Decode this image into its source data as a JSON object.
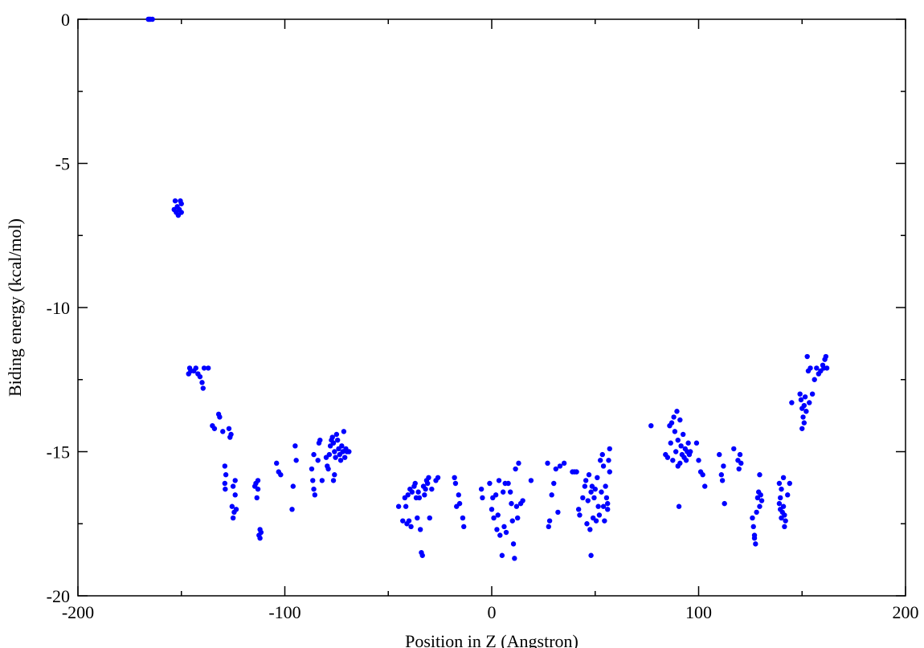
{
  "chart_data": {
    "type": "scatter",
    "title": "",
    "xlabel": "Position in Z (Angstron)",
    "ylabel": "Biding energy (kcal/mol)",
    "xlim": [
      -200,
      200
    ],
    "ylim": [
      -20,
      0
    ],
    "x_ticks": [
      -200,
      -100,
      0,
      100,
      200
    ],
    "y_ticks": [
      0,
      -5,
      -10,
      -15,
      -20
    ],
    "x_tick_labels": [
      "-200",
      "-100",
      "0",
      "100",
      "200"
    ],
    "y_tick_labels": [
      "0",
      "-5",
      "-10",
      "-15",
      "-20"
    ],
    "grid": false,
    "legend": false,
    "marker_color": "#0000ff",
    "points": [
      [
        -165,
        0.0
      ],
      [
        -164,
        0.0
      ],
      [
        -166,
        0.0
      ],
      [
        -165.5,
        0.0
      ],
      [
        -153,
        -6.3
      ],
      [
        -152,
        -6.5
      ],
      [
        -151,
        -6.6
      ],
      [
        -150,
        -6.4
      ],
      [
        -152.5,
        -6.7
      ],
      [
        -151.5,
        -6.8
      ],
      [
        -150.5,
        -6.3
      ],
      [
        -153.5,
        -6.6
      ],
      [
        -150,
        -6.7
      ],
      [
        -146,
        -12.1
      ],
      [
        -145.5,
        -12.2
      ],
      [
        -146.5,
        -12.3
      ],
      [
        -144,
        -12.2
      ],
      [
        -143,
        -12.1
      ],
      [
        -142,
        -12.3
      ],
      [
        -141,
        -12.4
      ],
      [
        -140,
        -12.6
      ],
      [
        -139.5,
        -12.8
      ],
      [
        -139,
        -12.1
      ],
      [
        -137,
        -12.1
      ],
      [
        -135,
        -14.1
      ],
      [
        -134,
        -14.2
      ],
      [
        -132,
        -13.7
      ],
      [
        -131.5,
        -13.8
      ],
      [
        -130,
        -14.3
      ],
      [
        -129,
        -15.5
      ],
      [
        -128.5,
        -15.8
      ],
      [
        -129,
        -16.1
      ],
      [
        -128.8,
        -16.3
      ],
      [
        -127,
        -14.2
      ],
      [
        -126,
        -14.4
      ],
      [
        -126.5,
        -14.5
      ],
      [
        -125,
        -16.2
      ],
      [
        -124,
        -16.5
      ],
      [
        -125.5,
        -16.9
      ],
      [
        -124.5,
        -17.1
      ],
      [
        -125,
        -17.3
      ],
      [
        -123.5,
        -17.0
      ],
      [
        -124,
        -16.0
      ],
      [
        -114,
        -16.1
      ],
      [
        -113,
        -16.3
      ],
      [
        -113.5,
        -16.6
      ],
      [
        -114.5,
        -16.2
      ],
      [
        -113,
        -16.0
      ],
      [
        -112,
        -17.7
      ],
      [
        -112.5,
        -17.9
      ],
      [
        -111.5,
        -17.8
      ],
      [
        -112,
        -18.0
      ],
      [
        -104,
        -15.4
      ],
      [
        -103,
        -15.7
      ],
      [
        -102,
        -15.8
      ],
      [
        -96,
        -16.2
      ],
      [
        -96.5,
        -17.0
      ],
      [
        -95,
        -14.8
      ],
      [
        -94.5,
        -15.3
      ],
      [
        -87,
        -15.6
      ],
      [
        -86.5,
        -16.0
      ],
      [
        -86,
        -16.3
      ],
      [
        -85.5,
        -16.5
      ],
      [
        -86,
        -15.1
      ],
      [
        -84,
        -15.3
      ],
      [
        -83.5,
        -14.7
      ],
      [
        -83,
        -14.6
      ],
      [
        -82,
        -16.0
      ],
      [
        -80,
        -15.2
      ],
      [
        -79.5,
        -15.5
      ],
      [
        -79,
        -15.6
      ],
      [
        -78.5,
        -15.1
      ],
      [
        -78,
        -14.8
      ],
      [
        -77.5,
        -14.6
      ],
      [
        -77,
        -14.5
      ],
      [
        -76.5,
        -14.7
      ],
      [
        -76,
        -15.0
      ],
      [
        -76,
        -15.8
      ],
      [
        -76.5,
        -16.0
      ],
      [
        -75.5,
        -15.2
      ],
      [
        -75,
        -14.4
      ],
      [
        -74.5,
        -14.6
      ],
      [
        -74,
        -14.9
      ],
      [
        -73.5,
        -15.1
      ],
      [
        -73,
        -15.3
      ],
      [
        -72.5,
        -14.8
      ],
      [
        -72,
        -15.0
      ],
      [
        -71.5,
        -14.3
      ],
      [
        -71,
        -15.2
      ],
      [
        -70.5,
        -14.9
      ],
      [
        -70,
        -15.0
      ],
      [
        -69,
        -15.0
      ],
      [
        -45,
        -16.9
      ],
      [
        -43,
        -17.4
      ],
      [
        -42,
        -16.6
      ],
      [
        -41.5,
        -16.9
      ],
      [
        -41,
        -17.5
      ],
      [
        -40.5,
        -16.5
      ],
      [
        -40,
        -17.4
      ],
      [
        -39.5,
        -16.3
      ],
      [
        -39,
        -17.6
      ],
      [
        -38.5,
        -16.4
      ],
      [
        -37.5,
        -16.2
      ],
      [
        -37,
        -16.1
      ],
      [
        -36.5,
        -16.6
      ],
      [
        -36,
        -17.3
      ],
      [
        -35.5,
        -16.4
      ],
      [
        -35,
        -16.6
      ],
      [
        -34.5,
        -17.7
      ],
      [
        -34,
        -18.5
      ],
      [
        -33.5,
        -18.6
      ],
      [
        -33,
        -16.2
      ],
      [
        -32.5,
        -16.5
      ],
      [
        -32,
        -16.3
      ],
      [
        -31.5,
        -16.0
      ],
      [
        -31,
        -16.1
      ],
      [
        -30.5,
        -15.9
      ],
      [
        -30,
        -17.3
      ],
      [
        -29,
        -16.3
      ],
      [
        -27,
        -16.0
      ],
      [
        -26,
        -15.9
      ],
      [
        -18,
        -15.9
      ],
      [
        -17.5,
        -16.1
      ],
      [
        -17,
        -16.9
      ],
      [
        -16,
        -16.5
      ],
      [
        -15.5,
        -16.8
      ],
      [
        -14,
        -17.3
      ],
      [
        -13.5,
        -17.6
      ],
      [
        -5,
        -16.3
      ],
      [
        -4.5,
        -16.6
      ],
      [
        -1,
        -16.1
      ],
      [
        0,
        -17.0
      ],
      [
        0.5,
        -16.6
      ],
      [
        1,
        -17.3
      ],
      [
        2,
        -16.5
      ],
      [
        2.5,
        -17.7
      ],
      [
        3,
        -17.2
      ],
      [
        3.5,
        -16.0
      ],
      [
        4,
        -17.9
      ],
      [
        5,
        -18.6
      ],
      [
        5.5,
        -16.4
      ],
      [
        6,
        -17.6
      ],
      [
        6.5,
        -16.1
      ],
      [
        7,
        -17.8
      ],
      [
        8,
        -16.1
      ],
      [
        9,
        -16.4
      ],
      [
        9.5,
        -16.8
      ],
      [
        10,
        -17.4
      ],
      [
        10.5,
        -18.2
      ],
      [
        11,
        -18.7
      ],
      [
        11.5,
        -15.6
      ],
      [
        12,
        -16.9
      ],
      [
        12.5,
        -17.3
      ],
      [
        13,
        -15.4
      ],
      [
        14,
        -16.8
      ],
      [
        15,
        -16.7
      ],
      [
        19,
        -16.0
      ],
      [
        27,
        -15.4
      ],
      [
        27.5,
        -17.6
      ],
      [
        28,
        -17.4
      ],
      [
        29,
        -16.5
      ],
      [
        30,
        -16.1
      ],
      [
        31,
        -15.6
      ],
      [
        32,
        -17.1
      ],
      [
        33,
        -15.5
      ],
      [
        35,
        -15.4
      ],
      [
        39,
        -15.7
      ],
      [
        40,
        -15.7
      ],
      [
        41,
        -15.7
      ],
      [
        42,
        -17.0
      ],
      [
        42.5,
        -17.2
      ],
      [
        44,
        -16.6
      ],
      [
        45,
        -16.2
      ],
      [
        45.5,
        -16.0
      ],
      [
        46,
        -17.5
      ],
      [
        46.5,
        -16.7
      ],
      [
        47,
        -15.8
      ],
      [
        47.5,
        -17.7
      ],
      [
        48,
        -16.4
      ],
      [
        48,
        -18.6
      ],
      [
        48.5,
        -16.2
      ],
      [
        49,
        -17.3
      ],
      [
        49.5,
        -16.6
      ],
      [
        50,
        -16.3
      ],
      [
        50.5,
        -17.4
      ],
      [
        51,
        -15.9
      ],
      [
        51.5,
        -16.9
      ],
      [
        52,
        -17.2
      ],
      [
        52.5,
        -15.3
      ],
      [
        53,
        -16.4
      ],
      [
        53.5,
        -15.1
      ],
      [
        54,
        -16.9
      ],
      [
        54.5,
        -17.4
      ],
      [
        54,
        -15.5
      ],
      [
        55,
        -16.2
      ],
      [
        55.5,
        -16.6
      ],
      [
        56,
        -17.0
      ],
      [
        56.5,
        -15.3
      ],
      [
        57,
        -14.9
      ],
      [
        57,
        -15.7
      ],
      [
        56,
        -16.8
      ],
      [
        77,
        -14.1
      ],
      [
        84,
        -15.1
      ],
      [
        85,
        -15.2
      ],
      [
        86,
        -14.1
      ],
      [
        86.5,
        -14.7
      ],
      [
        87,
        -14.0
      ],
      [
        87.5,
        -15.3
      ],
      [
        88,
        -13.8
      ],
      [
        88.5,
        -14.3
      ],
      [
        89,
        -15.0
      ],
      [
        89.5,
        -13.6
      ],
      [
        90,
        -14.6
      ],
      [
        90,
        -15.5
      ],
      [
        90.5,
        -16.9
      ],
      [
        91,
        -15.4
      ],
      [
        91,
        -13.9
      ],
      [
        91.5,
        -14.8
      ],
      [
        92,
        -15.1
      ],
      [
        92.5,
        -14.4
      ],
      [
        93,
        -15.2
      ],
      [
        93.5,
        -14.9
      ],
      [
        94,
        -15.3
      ],
      [
        94.5,
        -15.0
      ],
      [
        95,
        -14.7
      ],
      [
        95.5,
        -15.1
      ],
      [
        96,
        -15.0
      ],
      [
        99,
        -14.7
      ],
      [
        100,
        -15.3
      ],
      [
        101,
        -15.7
      ],
      [
        102,
        -15.8
      ],
      [
        103,
        -16.2
      ],
      [
        110,
        -15.1
      ],
      [
        111,
        -15.8
      ],
      [
        111.5,
        -16.0
      ],
      [
        112,
        -15.5
      ],
      [
        112.5,
        -16.8
      ],
      [
        117,
        -14.9
      ],
      [
        119,
        -15.3
      ],
      [
        119.5,
        -15.6
      ],
      [
        120,
        -15.1
      ],
      [
        120.5,
        -15.4
      ],
      [
        126,
        -17.3
      ],
      [
        126.5,
        -17.6
      ],
      [
        127,
        -18.0
      ],
      [
        127.5,
        -18.2
      ],
      [
        127,
        -17.9
      ],
      [
        128,
        -17.1
      ],
      [
        128.5,
        -16.6
      ],
      [
        129,
        -16.4
      ],
      [
        129.5,
        -16.9
      ],
      [
        129.5,
        -15.8
      ],
      [
        130,
        -16.5
      ],
      [
        130.5,
        -16.7
      ],
      [
        139,
        -16.1
      ],
      [
        139.5,
        -16.6
      ],
      [
        139,
        -16.8
      ],
      [
        139.5,
        -17.0
      ],
      [
        140,
        -16.3
      ],
      [
        140,
        -17.3
      ],
      [
        140.5,
        -17.1
      ],
      [
        141,
        -16.9
      ],
      [
        141,
        -15.9
      ],
      [
        141.5,
        -17.2
      ],
      [
        141.5,
        -17.6
      ],
      [
        142,
        -17.4
      ],
      [
        143,
        -16.5
      ],
      [
        144,
        -16.1
      ],
      [
        145,
        -13.3
      ],
      [
        149,
        -13.0
      ],
      [
        149.5,
        -13.2
      ],
      [
        150,
        -13.5
      ],
      [
        150,
        -14.2
      ],
      [
        150.5,
        -13.8
      ],
      [
        151,
        -14.0
      ],
      [
        151,
        -13.4
      ],
      [
        151.5,
        -13.1
      ],
      [
        152,
        -13.6
      ],
      [
        152.5,
        -11.7
      ],
      [
        153,
        -12.2
      ],
      [
        153.5,
        -13.3
      ],
      [
        154,
        -12.1
      ],
      [
        155,
        -13.0
      ],
      [
        156,
        -12.5
      ],
      [
        157,
        -12.1
      ],
      [
        158,
        -12.3
      ],
      [
        159,
        -12.2
      ],
      [
        160,
        -12.0
      ],
      [
        160.5,
        -12.1
      ],
      [
        161,
        -11.8
      ],
      [
        161.5,
        -11.7
      ],
      [
        162,
        -12.1
      ]
    ]
  }
}
